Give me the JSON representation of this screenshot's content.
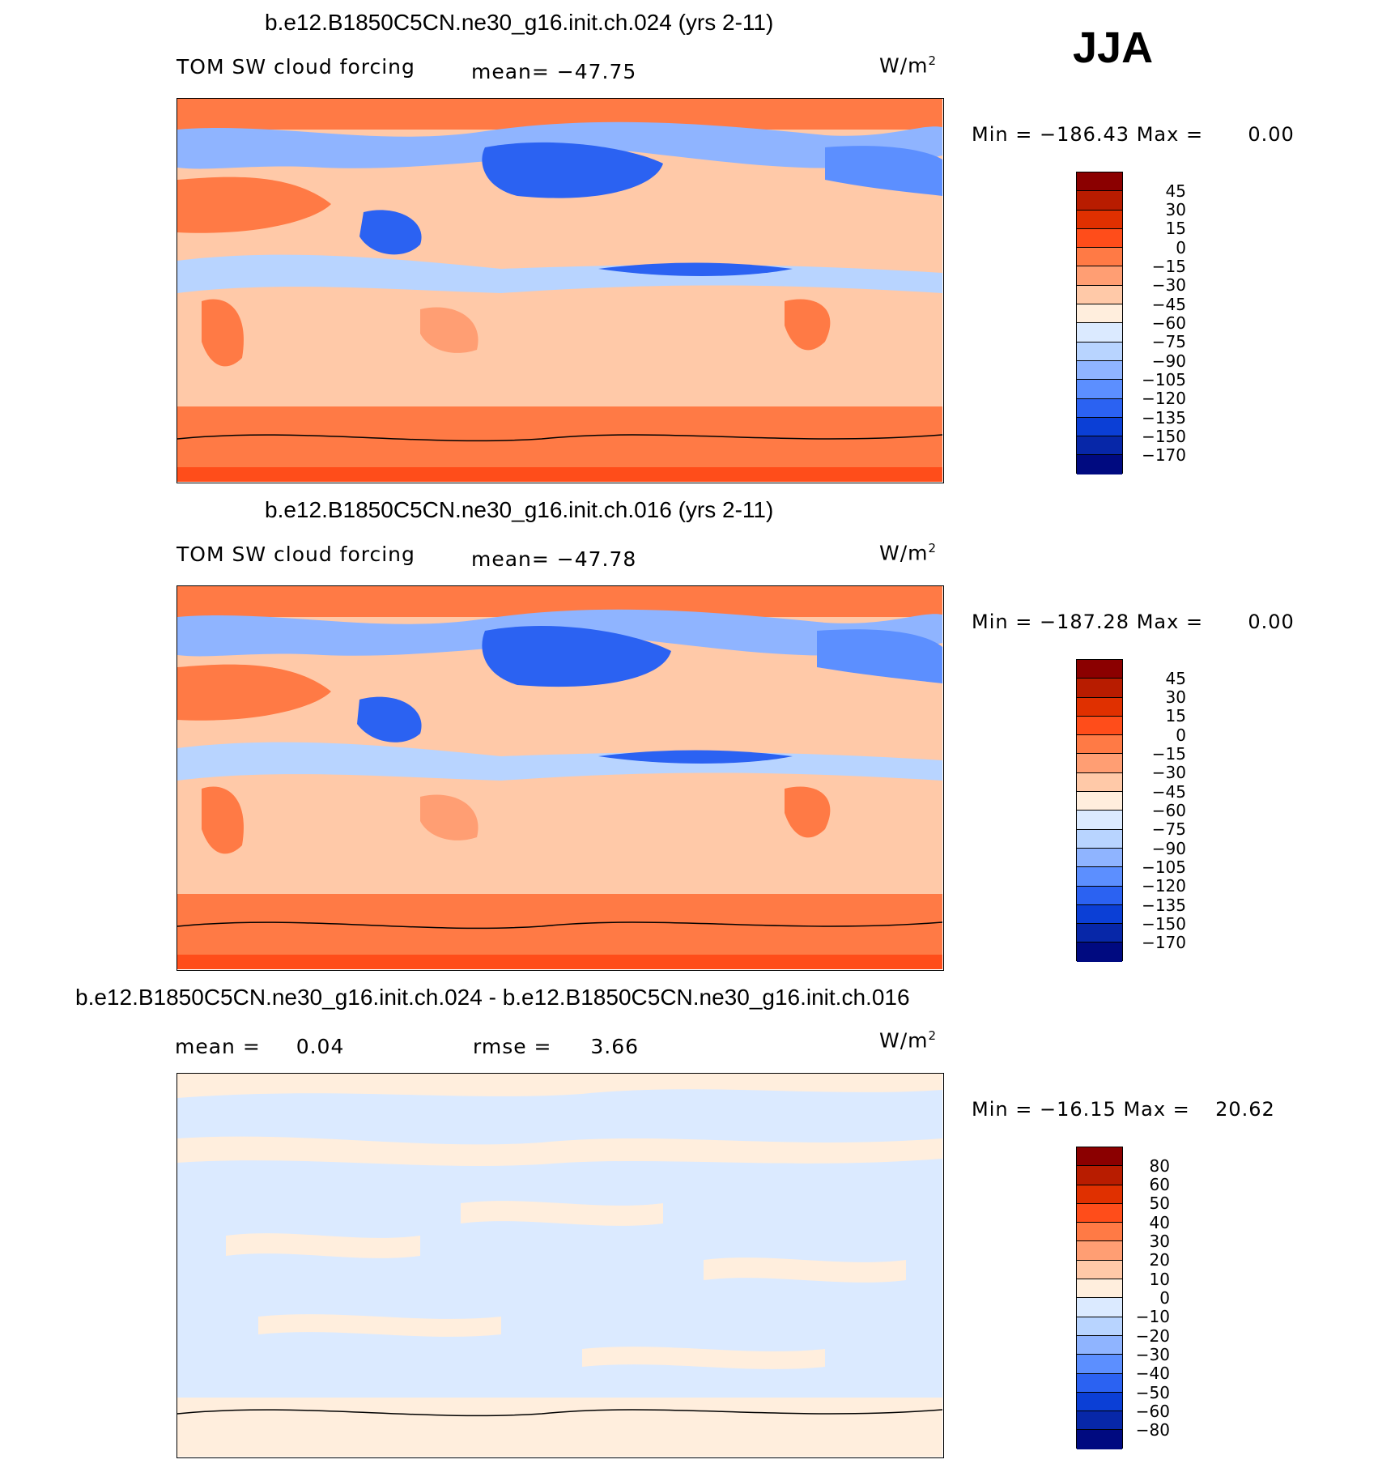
{
  "season": "JJA",
  "panels": [
    {
      "title": "b.e12.B1850C5CN.ne30_g16.init.ch.024 (yrs 2-11)",
      "variable": "TOM SW cloud forcing",
      "mean_text": "mean= −47.75",
      "units": "W/m",
      "units_sup": "2",
      "min_label": "Min =",
      "min_value": "−186.43",
      "max_label": "Max =",
      "max_value": "0.00",
      "colorbar": {
        "colors": [
          "#8b0000",
          "#b81c00",
          "#e03000",
          "#ff4d1a",
          "#ff7a45",
          "#ff9e73",
          "#ffc9a8",
          "#ffeedd",
          "#dbeaff",
          "#b8d4ff",
          "#8fb4ff",
          "#5c8fff",
          "#2b62f2",
          "#0b3fd6",
          "#0727a8",
          "#000a80"
        ],
        "labels": [
          "45",
          "30",
          "15",
          "0",
          "−15",
          "−30",
          "−45",
          "−60",
          "−75",
          "−90",
          "−105",
          "−120",
          "−135",
          "−150",
          "−170"
        ]
      }
    },
    {
      "title": "b.e12.B1850C5CN.ne30_g16.init.ch.016 (yrs 2-11)",
      "variable": "TOM SW cloud forcing",
      "mean_text": "mean= −47.78",
      "units": "W/m",
      "units_sup": "2",
      "min_label": "Min =",
      "min_value": "−187.28",
      "max_label": "Max =",
      "max_value": "0.00",
      "colorbar": {
        "colors": [
          "#8b0000",
          "#b81c00",
          "#e03000",
          "#ff4d1a",
          "#ff7a45",
          "#ff9e73",
          "#ffc9a8",
          "#ffeedd",
          "#dbeaff",
          "#b8d4ff",
          "#8fb4ff",
          "#5c8fff",
          "#2b62f2",
          "#0b3fd6",
          "#0727a8",
          "#000a80"
        ],
        "labels": [
          "45",
          "30",
          "15",
          "0",
          "−15",
          "−30",
          "−45",
          "−60",
          "−75",
          "−90",
          "−105",
          "−120",
          "−135",
          "−150",
          "−170"
        ]
      }
    },
    {
      "title": "b.e12.B1850C5CN.ne30_g16.init.ch.024 - b.e12.B1850C5CN.ne30_g16.init.ch.016",
      "mean_label": "mean =",
      "mean_value": "0.04",
      "rmse_label": "rmse =",
      "rmse_value": "3.66",
      "units": "W/m",
      "units_sup": "2",
      "min_label": "Min =",
      "min_value": "−16.15",
      "max_label": "Max =",
      "max_value": "20.62",
      "colorbar": {
        "colors": [
          "#8b0000",
          "#b81c00",
          "#e03000",
          "#ff4d1a",
          "#ff7a45",
          "#ff9e73",
          "#ffc9a8",
          "#ffeedd",
          "#dbeaff",
          "#b8d4ff",
          "#8fb4ff",
          "#5c8fff",
          "#2b62f2",
          "#0b3fd6",
          "#0727a8",
          "#000a80"
        ],
        "labels": [
          "80",
          "60",
          "50",
          "40",
          "30",
          "20",
          "10",
          "0",
          "−10",
          "−20",
          "−30",
          "−40",
          "−50",
          "−60",
          "−80"
        ]
      }
    }
  ]
}
